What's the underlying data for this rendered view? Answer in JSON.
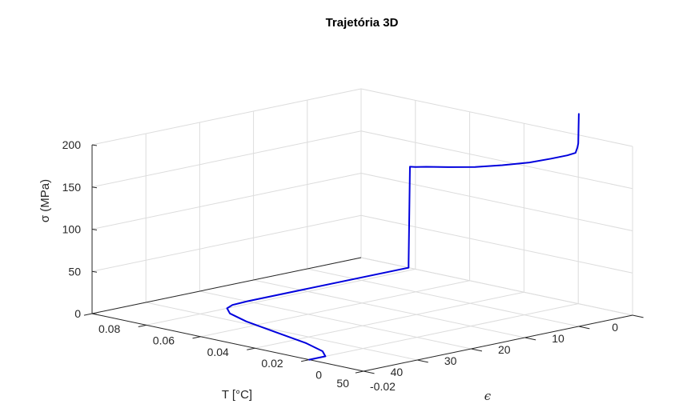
{
  "chart_data": {
    "type": "line",
    "title": "Trajetória 3D",
    "axes": {
      "T": {
        "label": "T [°C]",
        "range": [
          0,
          50
        ],
        "ticks": [
          "0",
          "10",
          "20",
          "30",
          "40",
          "50"
        ]
      },
      "epsilon": {
        "label": "ϵ",
        "range": [
          -0.02,
          0.08
        ],
        "ticks": [
          "-0.02",
          "0",
          "0.02",
          "0.04",
          "0.06",
          "0.08"
        ]
      },
      "sigma": {
        "label": "σ (MPa)",
        "range": [
          0,
          200
        ],
        "ticks": [
          "0",
          "50",
          "100",
          "150",
          "200"
        ]
      }
    },
    "grid": true,
    "series": [
      {
        "color": "#0000dd",
        "points": [
          {
            "T": 50,
            "epsilon": 0.0,
            "sigma": 0
          },
          {
            "T": 47,
            "epsilon": 0.0,
            "sigma": 0
          },
          {
            "T": 45,
            "epsilon": 0.005,
            "sigma": 0
          },
          {
            "T": 43,
            "epsilon": 0.015,
            "sigma": 0
          },
          {
            "T": 41,
            "epsilon": 0.03,
            "sigma": 0
          },
          {
            "T": 39,
            "epsilon": 0.045,
            "sigma": 0
          },
          {
            "T": 37,
            "epsilon": 0.055,
            "sigma": 0
          },
          {
            "T": 35,
            "epsilon": 0.06,
            "sigma": 0
          },
          {
            "T": 33,
            "epsilon": 0.062,
            "sigma": 0
          },
          {
            "T": 30,
            "epsilon": 0.0625,
            "sigma": 0
          },
          {
            "T": 0,
            "epsilon": 0.0625,
            "sigma": 0
          },
          {
            "T": 0,
            "epsilon": 0.0625,
            "sigma": 5
          },
          {
            "T": 0,
            "epsilon": 0.062,
            "sigma": 120
          },
          {
            "T": 0,
            "epsilon": 0.06,
            "sigma": 121
          },
          {
            "T": 0,
            "epsilon": 0.056,
            "sigma": 124
          },
          {
            "T": 0,
            "epsilon": 0.048,
            "sigma": 129
          },
          {
            "T": 0,
            "epsilon": 0.038,
            "sigma": 136
          },
          {
            "T": 0,
            "epsilon": 0.028,
            "sigma": 145
          },
          {
            "T": 0,
            "epsilon": 0.018,
            "sigma": 155
          },
          {
            "T": 0,
            "epsilon": 0.01,
            "sigma": 165
          },
          {
            "T": 0,
            "epsilon": 0.004,
            "sigma": 173
          },
          {
            "T": 0,
            "epsilon": 0.001,
            "sigma": 178
          },
          {
            "T": 0,
            "epsilon": 0.0003,
            "sigma": 185
          },
          {
            "T": 0,
            "epsilon": 0.0,
            "sigma": 190
          },
          {
            "T": 0,
            "epsilon": -0.0002,
            "sigma": 225
          }
        ]
      }
    ]
  }
}
